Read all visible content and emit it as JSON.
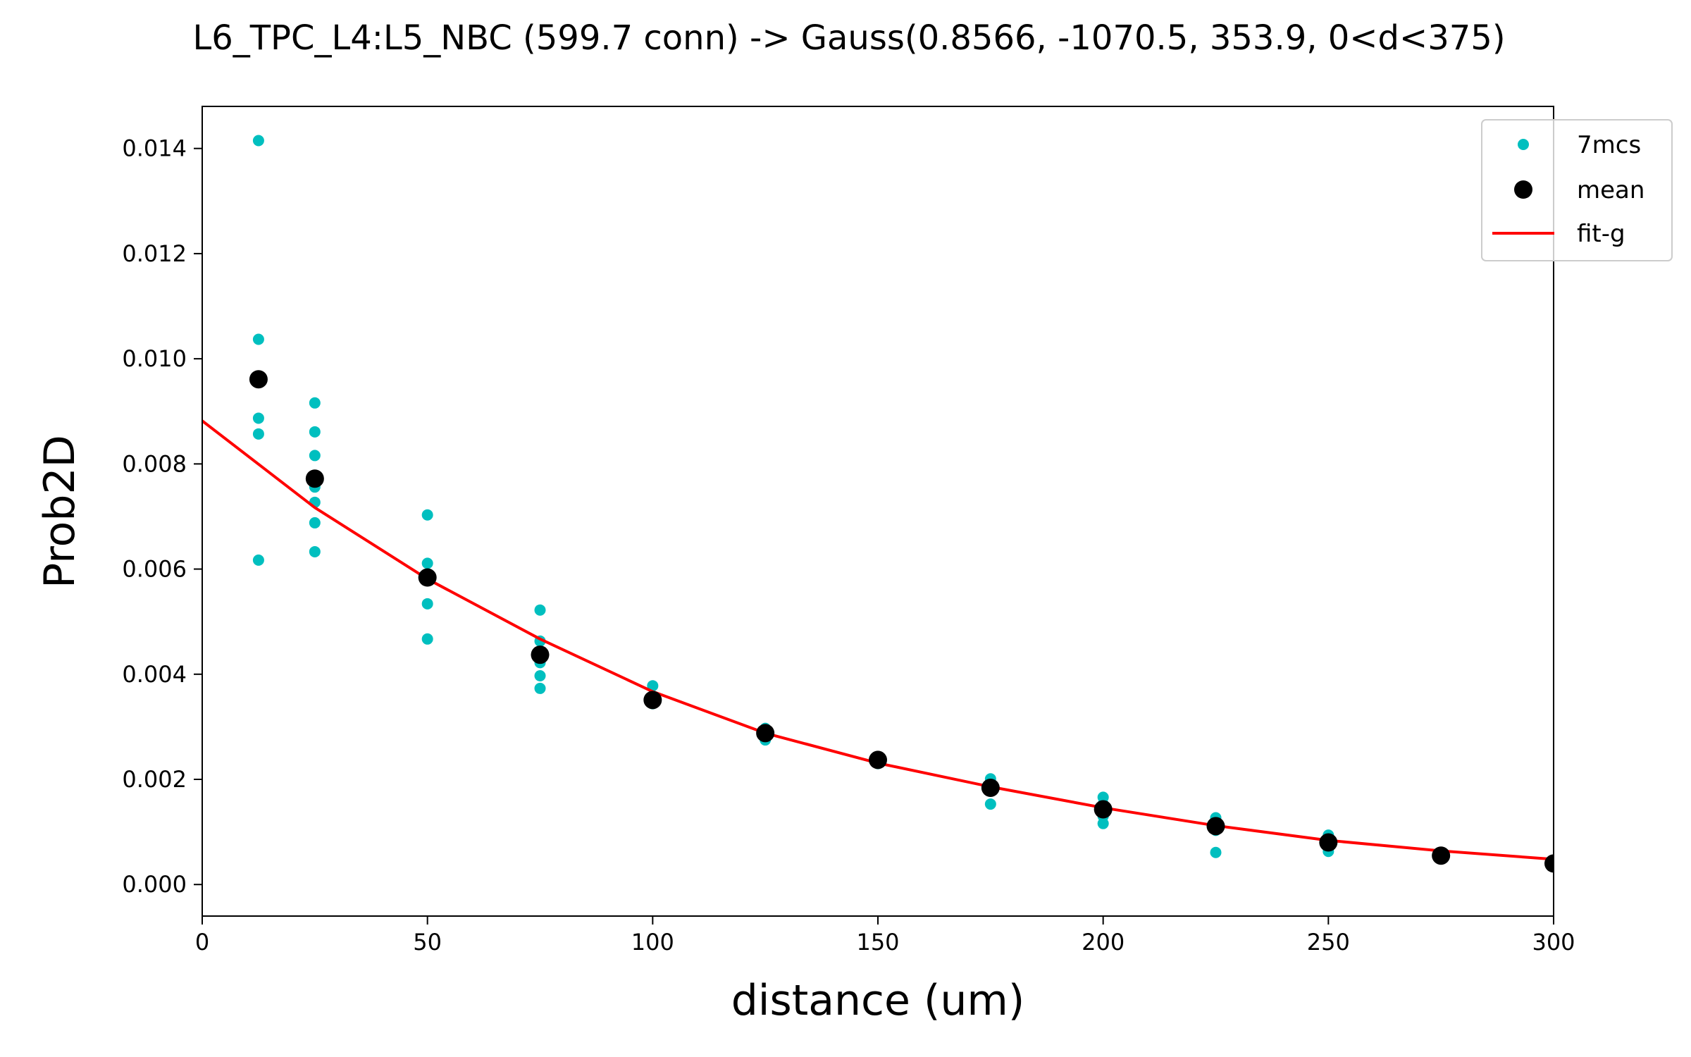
{
  "chart_data": {
    "type": "scatter",
    "title": "L6_TPC_L4:L5_NBC (599.7 conn) -> Gauss(0.8566, -1070.5, 353.9, 0<d<375)",
    "xlabel": "distance (um)",
    "ylabel": "Prob2D",
    "xlim": [
      0,
      300
    ],
    "ylim": [
      -0.0006,
      0.0148
    ],
    "xticks": [
      0,
      50,
      100,
      150,
      200,
      250,
      300
    ],
    "yticks": [
      0.0,
      0.002,
      0.004,
      0.006,
      0.008,
      0.01,
      0.012,
      0.014
    ],
    "ytick_labels": [
      "0.000",
      "0.002",
      "0.004",
      "0.006",
      "0.008",
      "0.010",
      "0.012",
      "0.014"
    ],
    "legend_position": "top-right",
    "grid": false,
    "series": [
      {
        "name": "7mcs",
        "kind": "points",
        "color": "#00bfbf",
        "points": [
          [
            12.5,
            0.01415
          ],
          [
            12.5,
            0.01037
          ],
          [
            12.5,
            0.00887
          ],
          [
            12.5,
            0.00857
          ],
          [
            12.5,
            0.00617
          ],
          [
            25,
            0.00916
          ],
          [
            25,
            0.00861
          ],
          [
            25,
            0.00816
          ],
          [
            25,
            0.00756
          ],
          [
            25,
            0.00727
          ],
          [
            25,
            0.00688
          ],
          [
            25,
            0.00633
          ],
          [
            50,
            0.00703
          ],
          [
            50,
            0.00611
          ],
          [
            50,
            0.00584
          ],
          [
            50,
            0.00534
          ],
          [
            50,
            0.00467
          ],
          [
            75,
            0.00522
          ],
          [
            75,
            0.00463
          ],
          [
            75,
            0.00442
          ],
          [
            75,
            0.00422
          ],
          [
            75,
            0.00397
          ],
          [
            75,
            0.00373
          ],
          [
            100,
            0.00378
          ],
          [
            100,
            0.00353
          ],
          [
            100,
            0.00344
          ],
          [
            125,
            0.00297
          ],
          [
            125,
            0.0029
          ],
          [
            125,
            0.00283
          ],
          [
            125,
            0.00275
          ],
          [
            150,
            0.00243
          ],
          [
            150,
            0.00237
          ],
          [
            150,
            0.0023
          ],
          [
            175,
            0.00201
          ],
          [
            175,
            0.00193
          ],
          [
            175,
            0.00181
          ],
          [
            175,
            0.00153
          ],
          [
            200,
            0.00166
          ],
          [
            200,
            0.00153
          ],
          [
            200,
            0.0013
          ],
          [
            200,
            0.00116
          ],
          [
            225,
            0.00127
          ],
          [
            225,
            0.00118
          ],
          [
            225,
            0.00103
          ],
          [
            225,
            0.00061
          ],
          [
            250,
            0.00094
          ],
          [
            250,
            0.00083
          ],
          [
            250,
            0.00071
          ],
          [
            250,
            0.00063
          ],
          [
            275,
            0.00057
          ],
          [
            275,
            0.00053
          ],
          [
            300,
            0.00042
          ],
          [
            300,
            0.00034
          ]
        ]
      },
      {
        "name": "mean",
        "kind": "points",
        "color": "#000000",
        "points": [
          [
            12.5,
            0.00961
          ],
          [
            25,
            0.00772
          ],
          [
            50,
            0.00584
          ],
          [
            75,
            0.00437
          ],
          [
            100,
            0.00351
          ],
          [
            125,
            0.00288
          ],
          [
            150,
            0.00237
          ],
          [
            175,
            0.00184
          ],
          [
            200,
            0.00143
          ],
          [
            225,
            0.00111
          ],
          [
            250,
            0.0008
          ],
          [
            275,
            0.00055
          ],
          [
            300,
            0.0004
          ]
        ]
      },
      {
        "name": "fit-g",
        "kind": "line",
        "color": "#ff0000",
        "points": [
          [
            0,
            0.00882
          ],
          [
            25,
            0.00717
          ],
          [
            50,
            0.00581
          ],
          [
            75,
            0.00467
          ],
          [
            100,
            0.00367
          ],
          [
            125,
            0.00288
          ],
          [
            150,
            0.00231
          ],
          [
            175,
            0.00186
          ],
          [
            200,
            0.00146
          ],
          [
            225,
            0.00112
          ],
          [
            250,
            0.00084
          ],
          [
            275,
            0.00064
          ],
          [
            300,
            0.00048
          ]
        ]
      }
    ]
  }
}
